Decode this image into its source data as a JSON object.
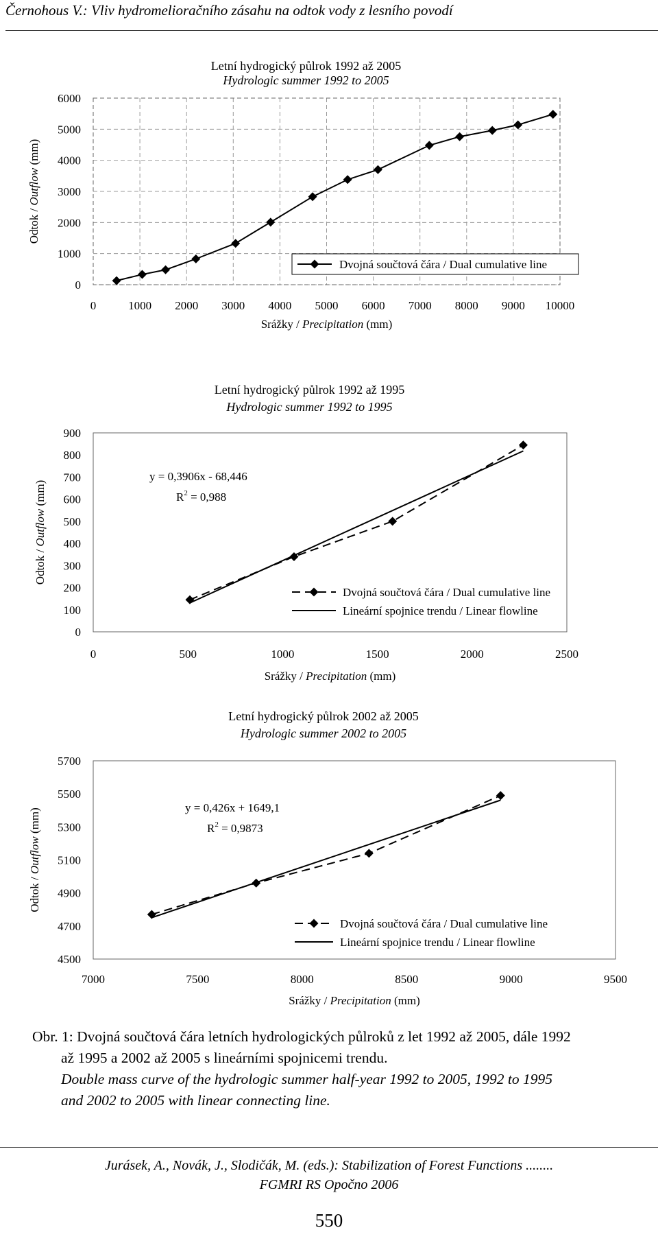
{
  "header": "Černohous V.: Vliv hydromelioračního zásahu na odtok vody z lesního povodí",
  "chart_data": [
    {
      "type": "line",
      "title": "Letní hydrogický půlrok 1992 až 2005",
      "subtitle": "Hydrologic summer 1992 to 2005",
      "xlabel_prefix": "Srážky / ",
      "xlabel_italic": "Precipitation",
      "xlabel_suffix": " (mm)",
      "ylabel_prefix": "Odtok / ",
      "ylabel_italic": "Outflow",
      "ylabel_suffix": " (mm)",
      "xlim": [
        0,
        10000
      ],
      "ylim": [
        0,
        6000
      ],
      "xticks": [
        "0",
        "1000",
        "2000",
        "3000",
        "4000",
        "5000",
        "6000",
        "7000",
        "8000",
        "9000",
        "10000"
      ],
      "yticks": [
        "0",
        "1000",
        "2000",
        "3000",
        "4000",
        "5000",
        "6000"
      ],
      "grid": true,
      "legend_position": "bottom-right",
      "series": [
        {
          "name": "Dvojná součtová čára / Dual cumulative line",
          "style": "solid",
          "x": [
            500,
            1050,
            1550,
            2200,
            3050,
            3800,
            4700,
            5450,
            6100,
            7200,
            7850,
            8550,
            9100,
            9850
          ],
          "y": [
            130,
            330,
            480,
            830,
            1330,
            2010,
            2830,
            3380,
            3700,
            4480,
            4760,
            4960,
            5140,
            5480
          ]
        }
      ]
    },
    {
      "type": "line",
      "title": "Letní hydrogický půlrok 1992 až 1995",
      "subtitle": "Hydrologic summer 1992 to 1995",
      "xlabel_prefix": "Srážky / ",
      "xlabel_italic": "Precipitation",
      "xlabel_suffix": " (mm)",
      "ylabel_prefix": "Odtok / ",
      "ylabel_italic": "Outflow",
      "ylabel_suffix": " (mm)",
      "xlim": [
        0,
        2500
      ],
      "ylim": [
        0,
        900
      ],
      "xticks": [
        "0",
        "500",
        "1000",
        "1500",
        "2000",
        "2500"
      ],
      "yticks": [
        "0",
        "100",
        "200",
        "300",
        "400",
        "500",
        "600",
        "700",
        "800",
        "900"
      ],
      "grid": false,
      "legend_position": "bottom-right",
      "equation": "y = 0,3906x - 68,446",
      "r2_prefix": "R",
      "r2_sup": "2",
      "r2_value": " = 0,988",
      "series": [
        {
          "name": "Dvojná součtová čára / Dual cumulative line",
          "style": "dashed",
          "x": [
            510,
            1060,
            1580,
            2270
          ],
          "y": [
            145,
            340,
            500,
            845
          ]
        },
        {
          "name": "Lineární spojnice trendu / Linear flowline",
          "style": "trend",
          "x": [
            510,
            2270
          ],
          "y": [
            130.8,
            818.2
          ]
        }
      ]
    },
    {
      "type": "line",
      "title": "Letní hydrogický půlrok 2002 až 2005",
      "subtitle": "Hydrologic summer 2002 to 2005",
      "xlabel_prefix": "Srážky / ",
      "xlabel_italic": "Precipitation",
      "xlabel_suffix": " (mm)",
      "ylabel_prefix": "Odtok / ",
      "ylabel_italic": "Outflow",
      "ylabel_suffix": " (mm)",
      "xlim": [
        7000,
        9500
      ],
      "ylim": [
        4500,
        5700
      ],
      "xticks": [
        "7000",
        "7500",
        "8000",
        "8500",
        "9000",
        "9500"
      ],
      "yticks": [
        "4500",
        "4700",
        "4900",
        "5100",
        "5300",
        "5500",
        "5700"
      ],
      "grid": false,
      "legend_position": "bottom-right",
      "equation": "y = 0,426x + 1649,1",
      "r2_prefix": "R",
      "r2_sup": "2",
      "r2_value": " = 0,9873",
      "series": [
        {
          "name": "Dvojná součtová čára / Dual cumulative line",
          "style": "dashed",
          "x": [
            7280,
            7780,
            8320,
            8950
          ],
          "y": [
            4770,
            4960,
            5140,
            5490
          ]
        },
        {
          "name": "Lineární spojnice trendu / Linear flowline",
          "style": "trend",
          "x": [
            7280,
            8950
          ],
          "y": [
            4750.4,
            5461.8
          ]
        }
      ]
    }
  ],
  "caption": {
    "cz_label": "Obr. 1:",
    "cz_line1": " Dvojná součtová čára letních hydrologických půlroků z let 1992 až 2005, dále 1992",
    "cz_line2": "až 1995 a 2002 až 2005 s lineárními spojnicemi trendu.",
    "en_line1": "Double mass curve of the hydrologic summer half-year 1992 to 2005, 1992 to 1995",
    "en_line2": "and 2002 to 2005 with linear connecting line."
  },
  "footer": {
    "line1": "Jurásek, A., Novák, J., Slodičák, M. (eds.): Stabilization of Forest Functions ........",
    "line2": "FGMRI RS Opočno 2006"
  },
  "page_number": "550"
}
